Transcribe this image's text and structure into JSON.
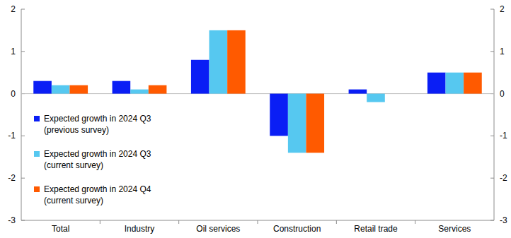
{
  "chart_data": {
    "type": "bar",
    "categories": [
      "Total",
      "Industry",
      "Oil services",
      "Construction",
      "Retail trade",
      "Services"
    ],
    "series": [
      {
        "name": "Expected growth in 2024 Q3 (previous survey)",
        "color": "#0a1ef5",
        "values": [
          0.3,
          0.3,
          0.8,
          -1.0,
          0.1,
          0.5
        ]
      },
      {
        "name": "Expected growth in 2024 Q3 (current survey)",
        "color": "#56c8f0",
        "values": [
          0.2,
          0.1,
          1.5,
          -1.4,
          -0.2,
          0.5
        ]
      },
      {
        "name": "Expected growth in 2024 Q4 (current survey)",
        "color": "#ff5a00",
        "values": [
          0.2,
          0.2,
          1.5,
          -1.4,
          0,
          0.5
        ]
      }
    ],
    "ylim": [
      -3,
      2
    ],
    "yticks": [
      -3,
      -2,
      -1,
      0,
      1,
      2
    ],
    "y2lim": [
      -3,
      2
    ],
    "y2ticks": [
      -3,
      -2,
      -1,
      0,
      1,
      2
    ],
    "grid": false,
    "legend": "left",
    "data_labels": false
  }
}
